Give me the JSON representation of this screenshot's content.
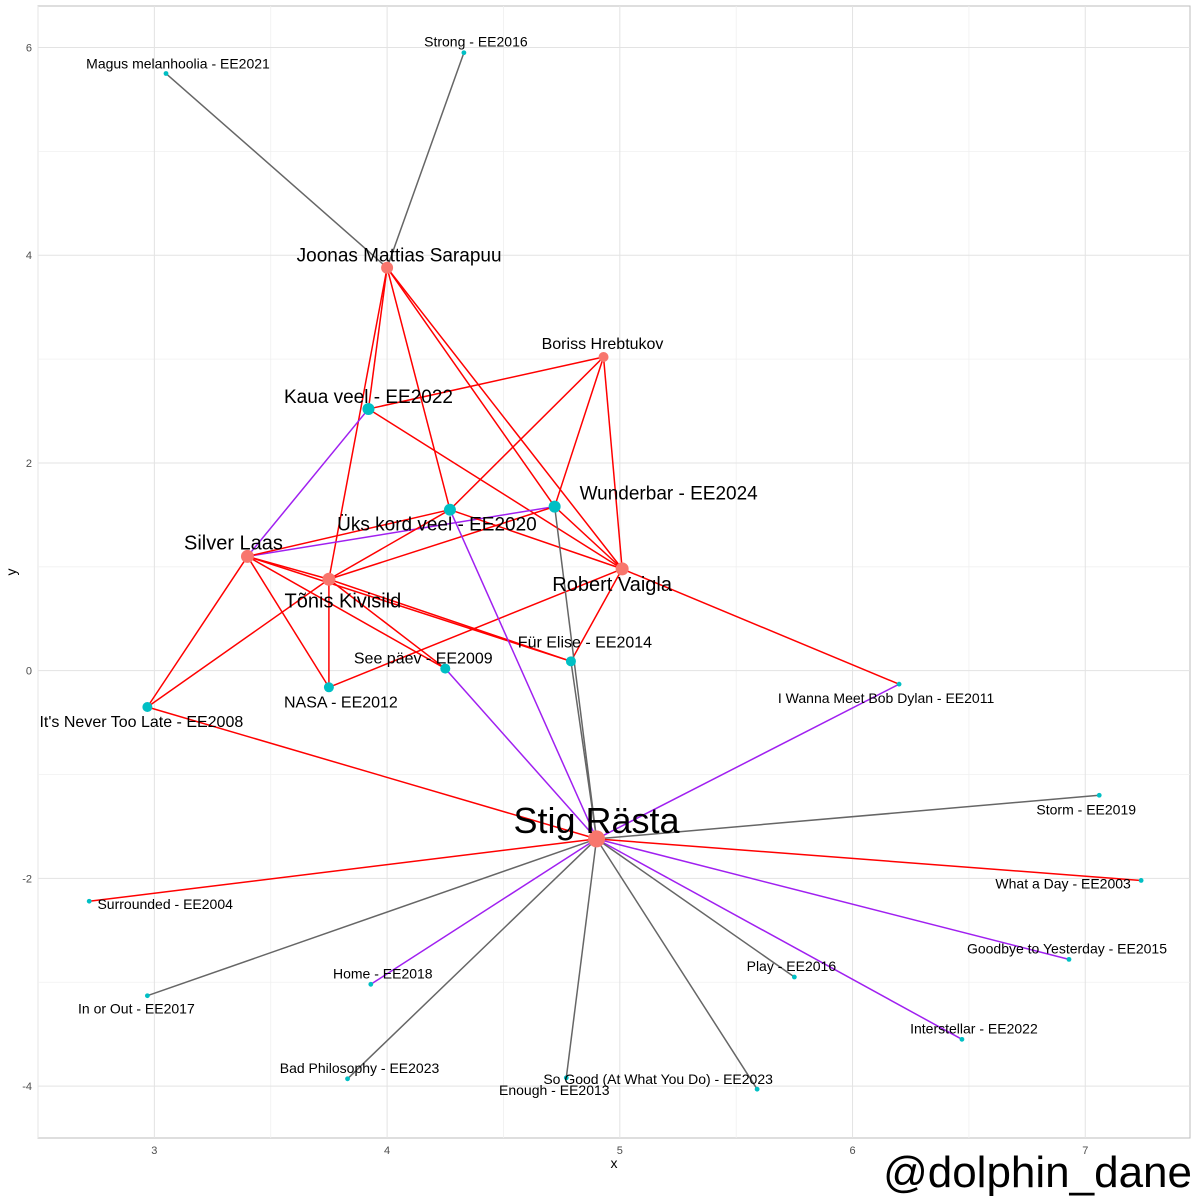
{
  "chart_data": {
    "type": "scatter",
    "subtype": "network-graph",
    "xlabel": "x",
    "ylabel": "y",
    "xlim": [
      2.5,
      7.45
    ],
    "ylim": [
      -4.5,
      6.4
    ],
    "xticks": [
      3,
      4,
      5,
      6,
      7
    ],
    "yticks": [
      -4,
      -2,
      0,
      2,
      4,
      6
    ],
    "grid": true,
    "colors": {
      "person_node": "#F8766D",
      "song_node": "#00BFC4",
      "edge_red": "#FF0000",
      "edge_purple": "#A020F0",
      "edge_gray": "#666666"
    },
    "nodes": [
      {
        "id": "stig",
        "label": "Stig Rästa",
        "x": 4.9,
        "y": -1.62,
        "kind": "person",
        "size": "xlarge"
      },
      {
        "id": "joonas",
        "label": "Joonas Mattias Sarapuu",
        "x": 4.0,
        "y": 3.88,
        "kind": "person",
        "size": "medium"
      },
      {
        "id": "boriss",
        "label": "Boriss Hrebtukov",
        "x": 4.93,
        "y": 3.02,
        "kind": "person",
        "size": "small"
      },
      {
        "id": "silver",
        "label": "Silver Laas",
        "x": 3.4,
        "y": 1.1,
        "kind": "person",
        "size": "large"
      },
      {
        "id": "tonis",
        "label": "Tõnis Kivisild",
        "x": 3.75,
        "y": 0.88,
        "kind": "person",
        "size": "large"
      },
      {
        "id": "robert",
        "label": "Robert Vaigla",
        "x": 5.01,
        "y": 0.98,
        "kind": "person",
        "size": "large"
      },
      {
        "id": "kaua",
        "label": "Kaua veel - EE2022",
        "x": 3.92,
        "y": 2.52,
        "kind": "song",
        "size": "medium"
      },
      {
        "id": "wunder",
        "label": "Wunderbar - EE2024",
        "x": 4.72,
        "y": 1.58,
        "kind": "song",
        "size": "medium"
      },
      {
        "id": "uks",
        "label": "Üks kord veel - EE2020",
        "x": 4.27,
        "y": 1.55,
        "kind": "song",
        "size": "medium"
      },
      {
        "id": "fur",
        "label": "Für Elise - EE2014",
        "x": 4.79,
        "y": 0.09,
        "kind": "song",
        "size": "small"
      },
      {
        "id": "seepaev",
        "label": "See päev - EE2009",
        "x": 4.25,
        "y": 0.02,
        "kind": "song",
        "size": "small"
      },
      {
        "id": "nasa",
        "label": "NASA - EE2012",
        "x": 3.75,
        "y": -0.16,
        "kind": "song",
        "size": "small"
      },
      {
        "id": "never",
        "label": "It's Never Too Late - EE2008",
        "x": 2.97,
        "y": -0.35,
        "kind": "song",
        "size": "small"
      },
      {
        "id": "dylan",
        "label": "I Wanna Meet Bob Dylan - EE2011",
        "x": 6.2,
        "y": -0.13,
        "kind": "song",
        "size": "tiny"
      },
      {
        "id": "magus",
        "label": "Magus melanhoolia - EE2021",
        "x": 3.05,
        "y": 5.75,
        "kind": "song",
        "size": "tiny"
      },
      {
        "id": "strong",
        "label": "Strong - EE2016",
        "x": 4.33,
        "y": 5.95,
        "kind": "song",
        "size": "tiny"
      },
      {
        "id": "storm",
        "label": "Storm - EE2019",
        "x": 7.06,
        "y": -1.2,
        "kind": "song",
        "size": "tiny"
      },
      {
        "id": "whataday",
        "label": "What a Day - EE2003",
        "x": 7.24,
        "y": -2.02,
        "kind": "song",
        "size": "tiny"
      },
      {
        "id": "goodbye",
        "label": "Goodbye to Yesterday - EE2015",
        "x": 6.93,
        "y": -2.78,
        "kind": "song",
        "size": "tiny"
      },
      {
        "id": "interstellar",
        "label": "Interstellar - EE2022",
        "x": 6.47,
        "y": -3.55,
        "kind": "song",
        "size": "tiny"
      },
      {
        "id": "play",
        "label": "Play - EE2016",
        "x": 5.75,
        "y": -2.95,
        "kind": "song",
        "size": "tiny"
      },
      {
        "id": "sogood",
        "label": "So Good (At What You Do) - EE2023",
        "x": 5.59,
        "y": -4.03,
        "kind": "song",
        "size": "tiny"
      },
      {
        "id": "enough",
        "label": "Enough - EE2013",
        "x": 4.77,
        "y": -3.92,
        "kind": "song",
        "size": "tiny"
      },
      {
        "id": "badphil",
        "label": "Bad Philosophy - EE2023",
        "x": 3.83,
        "y": -3.93,
        "kind": "song",
        "size": "tiny"
      },
      {
        "id": "home",
        "label": "Home - EE2018",
        "x": 3.93,
        "y": -3.02,
        "kind": "song",
        "size": "tiny"
      },
      {
        "id": "inorout",
        "label": "In or Out - EE2017",
        "x": 2.97,
        "y": -3.13,
        "kind": "song",
        "size": "tiny"
      },
      {
        "id": "surrounded",
        "label": "Surrounded - EE2004",
        "x": 2.72,
        "y": -2.22,
        "kind": "song",
        "size": "tiny"
      }
    ],
    "edges": [
      {
        "from": "magus",
        "to": "joonas",
        "color": "gray"
      },
      {
        "from": "strong",
        "to": "joonas",
        "color": "gray"
      },
      {
        "from": "joonas",
        "to": "kaua",
        "color": "red"
      },
      {
        "from": "joonas",
        "to": "uks",
        "color": "red"
      },
      {
        "from": "joonas",
        "to": "wunder",
        "color": "red"
      },
      {
        "from": "joonas",
        "to": "robert",
        "color": "red"
      },
      {
        "from": "joonas",
        "to": "tonis",
        "color": "red"
      },
      {
        "from": "kaua",
        "to": "boriss",
        "color": "red"
      },
      {
        "from": "boriss",
        "to": "uks",
        "color": "red"
      },
      {
        "from": "boriss",
        "to": "wunder",
        "color": "red"
      },
      {
        "from": "boriss",
        "to": "robert",
        "color": "red"
      },
      {
        "from": "kaua",
        "to": "silver",
        "color": "purple"
      },
      {
        "from": "kaua",
        "to": "robert",
        "color": "red"
      },
      {
        "from": "silver",
        "to": "wunder",
        "color": "purple"
      },
      {
        "from": "silver",
        "to": "uks",
        "color": "red"
      },
      {
        "from": "silver",
        "to": "tonis",
        "color": "red"
      },
      {
        "from": "silver",
        "to": "fur",
        "color": "red"
      },
      {
        "from": "silver",
        "to": "seepaev",
        "color": "red"
      },
      {
        "from": "silver",
        "to": "nasa",
        "color": "red"
      },
      {
        "from": "silver",
        "to": "never",
        "color": "red"
      },
      {
        "from": "tonis",
        "to": "uks",
        "color": "red"
      },
      {
        "from": "tonis",
        "to": "wunder",
        "color": "red"
      },
      {
        "from": "tonis",
        "to": "fur",
        "color": "red"
      },
      {
        "from": "tonis",
        "to": "seepaev",
        "color": "red"
      },
      {
        "from": "tonis",
        "to": "nasa",
        "color": "red"
      },
      {
        "from": "tonis",
        "to": "never",
        "color": "red"
      },
      {
        "from": "uks",
        "to": "robert",
        "color": "red"
      },
      {
        "from": "wunder",
        "to": "robert",
        "color": "red"
      },
      {
        "from": "robert",
        "to": "fur",
        "color": "red"
      },
      {
        "from": "robert",
        "to": "nasa",
        "color": "red"
      },
      {
        "from": "robert",
        "to": "dylan",
        "color": "red"
      },
      {
        "from": "never",
        "to": "stig",
        "color": "red"
      },
      {
        "from": "uks",
        "to": "stig",
        "color": "purple"
      },
      {
        "from": "wunder",
        "to": "stig",
        "color": "gray"
      },
      {
        "from": "fur",
        "to": "stig",
        "color": "gray"
      },
      {
        "from": "seepaev",
        "to": "stig",
        "color": "purple"
      },
      {
        "from": "dylan",
        "to": "stig",
        "color": "purple"
      },
      {
        "from": "storm",
        "to": "stig",
        "color": "gray"
      },
      {
        "from": "whataday",
        "to": "stig",
        "color": "red"
      },
      {
        "from": "goodbye",
        "to": "stig",
        "color": "purple"
      },
      {
        "from": "interstellar",
        "to": "stig",
        "color": "purple"
      },
      {
        "from": "play",
        "to": "stig",
        "color": "gray"
      },
      {
        "from": "sogood",
        "to": "stig",
        "color": "gray"
      },
      {
        "from": "enough",
        "to": "stig",
        "color": "gray"
      },
      {
        "from": "badphil",
        "to": "stig",
        "color": "gray"
      },
      {
        "from": "home",
        "to": "stig",
        "color": "purple"
      },
      {
        "from": "inorout",
        "to": "stig",
        "color": "gray"
      },
      {
        "from": "surrounded",
        "to": "stig",
        "color": "red"
      }
    ]
  },
  "watermark": "@dolphin_dane"
}
